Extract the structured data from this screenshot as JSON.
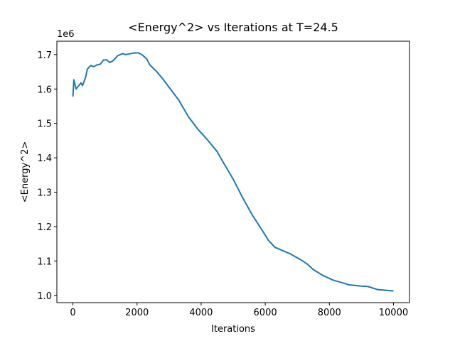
{
  "chart_data": {
    "type": "line",
    "title": "<Energy^2> vs Iterations at T=24.5",
    "x_label": "Iterations",
    "y_label": "<Energy^2>",
    "y_offset_label": "1e6",
    "x": [
      0,
      30,
      100,
      200,
      250,
      300,
      400,
      450,
      550,
      650,
      750,
      850,
      950,
      1050,
      1150,
      1250,
      1400,
      1550,
      1650,
      1800,
      1900,
      2050,
      2150,
      2300,
      2400,
      2600,
      2800,
      3000,
      3300,
      3600,
      3900,
      4200,
      4500,
      4700,
      5000,
      5300,
      5600,
      5900,
      6100,
      6300,
      6500,
      6800,
      7100,
      7300,
      7500,
      7800,
      8100,
      8400,
      8600,
      9000,
      9200,
      9500,
      10000
    ],
    "values": [
      1578000,
      1627000,
      1600000,
      1612000,
      1618000,
      1610000,
      1635000,
      1658000,
      1668000,
      1665000,
      1670000,
      1672000,
      1684000,
      1685000,
      1677000,
      1682000,
      1697000,
      1703000,
      1700000,
      1703000,
      1705000,
      1705000,
      1700000,
      1688000,
      1670000,
      1652000,
      1630000,
      1605000,
      1568000,
      1520000,
      1483000,
      1452000,
      1418000,
      1385000,
      1338000,
      1283000,
      1233000,
      1190000,
      1160000,
      1140000,
      1132000,
      1120000,
      1104000,
      1092000,
      1075000,
      1058000,
      1045000,
      1037000,
      1031000,
      1027000,
      1026000,
      1017000,
      1013000
    ],
    "color": "#1f77b4",
    "xlim": [
      -500,
      10500
    ],
    "xticks": [
      0,
      2000,
      4000,
      6000,
      8000,
      10000
    ],
    "ylim": [
      979000,
      1739000
    ],
    "yticks": [
      {
        "value": 1000000,
        "label": "1.0"
      },
      {
        "value": 1100000,
        "label": "1.1"
      },
      {
        "value": 1200000,
        "label": "1.2"
      },
      {
        "value": 1300000,
        "label": "1.3"
      },
      {
        "value": 1400000,
        "label": "1.4"
      },
      {
        "value": 1500000,
        "label": "1.5"
      },
      {
        "value": 1600000,
        "label": "1.6"
      },
      {
        "value": 1700000,
        "label": "1.7"
      }
    ]
  }
}
